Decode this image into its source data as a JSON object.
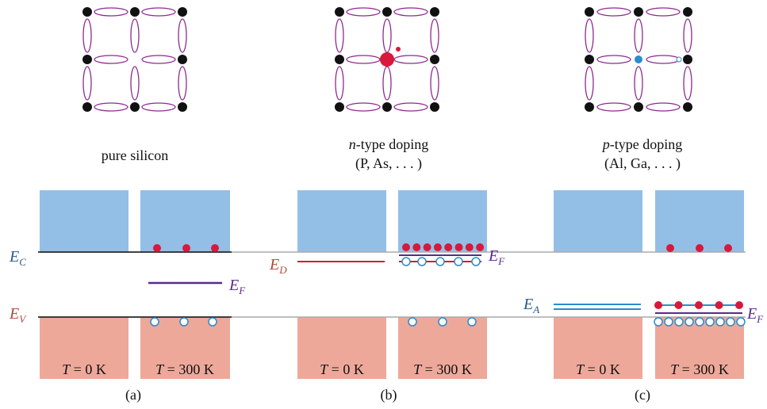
{
  "panels": [
    {
      "caption": "pure silicon",
      "cold": {
        "var": "T",
        "rest": " = 0 K"
      },
      "hot": {
        "var": "T",
        "rest": " = 300 K"
      },
      "tag": "(a)"
    },
    {
      "caption": {
        "italic": "n",
        "rest": "-type doping"
      },
      "subcaption": "(P, As, . . . )",
      "cold": {
        "var": "T",
        "rest": " = 0 K"
      },
      "hot": {
        "var": "T",
        "rest": " = 300 K"
      },
      "tag": "(b)"
    },
    {
      "caption": {
        "italic": "p",
        "rest": "-type doping"
      },
      "subcaption": "(Al, Ga, . . . )",
      "cold": {
        "var": "T",
        "rest": " = 0 K"
      },
      "hot": {
        "var": "T",
        "rest": " = 300 K"
      },
      "tag": "(c)"
    }
  ],
  "levels": {
    "conduction": {
      "main": "E",
      "sub": "C"
    },
    "valence": {
      "main": "E",
      "sub": "V"
    },
    "fermi_a": {
      "main": "E",
      "sub": "F"
    },
    "donor": {
      "main": "E",
      "sub": "D"
    },
    "fermi_b": {
      "main": "E",
      "sub": "F"
    },
    "acceptor": {
      "main": "E",
      "sub": "A"
    },
    "fermi_c": {
      "main": "E",
      "sub": "F"
    }
  }
}
